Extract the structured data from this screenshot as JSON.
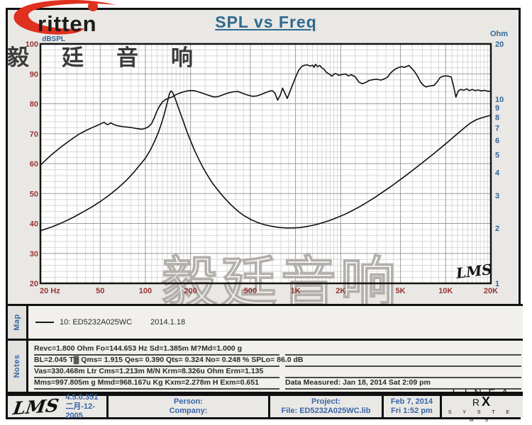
{
  "logo": {
    "brand_text": "ritten",
    "accent_color": "#e0301e"
  },
  "header_cn": "毅廷音响",
  "title": "SPL vs Freq",
  "chart_data": {
    "type": "line",
    "title": "SPL vs Freq",
    "x_axis": {
      "label": "Hz",
      "scale": "log",
      "min": 20,
      "max": 20000,
      "major_ticks": [
        20,
        50,
        100,
        200,
        500,
        1000,
        2000,
        5000,
        10000,
        20000
      ],
      "tick_labels": [
        "20 Hz",
        "50",
        "100",
        "200",
        "500",
        "1K",
        "2K",
        "5K",
        "10K",
        "20K"
      ]
    },
    "y_left": {
      "label": "dBSPL",
      "scale": "linear",
      "min": 20,
      "max": 100,
      "ticks": [
        100,
        90,
        80,
        70,
        60,
        50,
        40,
        30,
        20
      ]
    },
    "y_right": {
      "label": "Ohm",
      "scale": "log",
      "min": 1,
      "max": 20,
      "ticks": [
        20,
        10,
        9,
        8,
        7,
        6,
        5,
        4,
        3,
        2,
        1
      ]
    },
    "grid": true,
    "watermark": "毅廷音响",
    "signature": "LMS",
    "series": [
      {
        "name": "SPL (dB)",
        "axis": "left",
        "points": [
          [
            20,
            59.5
          ],
          [
            22,
            61.5
          ],
          [
            24,
            63.2
          ],
          [
            27,
            65.3
          ],
          [
            30,
            67
          ],
          [
            33,
            68.5
          ],
          [
            36,
            69.8
          ],
          [
            40,
            71
          ],
          [
            44,
            72
          ],
          [
            48,
            72.8
          ],
          [
            50,
            73.2
          ],
          [
            53,
            73.8
          ],
          [
            56,
            73
          ],
          [
            59,
            73.6
          ],
          [
            62,
            73
          ],
          [
            66,
            72.6
          ],
          [
            72,
            72.3
          ],
          [
            80,
            72.1
          ],
          [
            88,
            71.7
          ],
          [
            95,
            71.5
          ],
          [
            100,
            71.8
          ],
          [
            105,
            72.3
          ],
          [
            110,
            73.4
          ],
          [
            115,
            75.5
          ],
          [
            120,
            77.8
          ],
          [
            125,
            79.4
          ],
          [
            130,
            80.6
          ],
          [
            136,
            81.4
          ],
          [
            143,
            81.9
          ],
          [
            150,
            82.2
          ],
          [
            158,
            82.9
          ],
          [
            168,
            83.5
          ],
          [
            180,
            84
          ],
          [
            195,
            84.4
          ],
          [
            210,
            84.4
          ],
          [
            225,
            84
          ],
          [
            245,
            83.4
          ],
          [
            265,
            82.8
          ],
          [
            285,
            82.3
          ],
          [
            305,
            82.4
          ],
          [
            330,
            83
          ],
          [
            355,
            83.6
          ],
          [
            385,
            84
          ],
          [
            415,
            84.1
          ],
          [
            445,
            83.5
          ],
          [
            480,
            82.9
          ],
          [
            515,
            82.5
          ],
          [
            550,
            82.6
          ],
          [
            590,
            83.1
          ],
          [
            630,
            83.7
          ],
          [
            670,
            84.2
          ],
          [
            700,
            84.4
          ],
          [
            730,
            83.5
          ],
          [
            760,
            81.2
          ],
          [
            790,
            82.8
          ],
          [
            820,
            85.2
          ],
          [
            855,
            83.3
          ],
          [
            880,
            81.8
          ],
          [
            910,
            83.5
          ],
          [
            950,
            86
          ],
          [
            1000,
            88.8
          ],
          [
            1050,
            91.2
          ],
          [
            1100,
            92.5
          ],
          [
            1150,
            92.9
          ],
          [
            1200,
            93
          ],
          [
            1250,
            92.6
          ],
          [
            1300,
            92.9
          ],
          [
            1330,
            92.2
          ],
          [
            1360,
            93.2
          ],
          [
            1400,
            92.4
          ],
          [
            1450,
            92.8
          ],
          [
            1500,
            92
          ],
          [
            1550,
            91.5
          ],
          [
            1600,
            90.6
          ],
          [
            1700,
            89.7
          ],
          [
            1750,
            89.2
          ],
          [
            1800,
            89.9
          ],
          [
            1850,
            90.1
          ],
          [
            1950,
            89.5
          ],
          [
            2050,
            89.8
          ],
          [
            2150,
            90
          ],
          [
            2250,
            89.3
          ],
          [
            2350,
            89.7
          ],
          [
            2500,
            89
          ],
          [
            2650,
            87.2
          ],
          [
            2800,
            86.7
          ],
          [
            2950,
            87.2
          ],
          [
            3100,
            87.8
          ],
          [
            3300,
            88.1
          ],
          [
            3500,
            88.2
          ],
          [
            3700,
            87.9
          ],
          [
            3900,
            88.3
          ],
          [
            4100,
            88.9
          ],
          [
            4300,
            90.3
          ],
          [
            4500,
            91.2
          ],
          [
            4700,
            91.8
          ],
          [
            4900,
            92.2
          ],
          [
            5100,
            92.4
          ],
          [
            5300,
            92.2
          ],
          [
            5500,
            92.5
          ],
          [
            5700,
            92.8
          ],
          [
            5900,
            92
          ],
          [
            6200,
            90.8
          ],
          [
            6500,
            89.2
          ],
          [
            6800,
            87.3
          ],
          [
            7100,
            86.2
          ],
          [
            7400,
            85.6
          ],
          [
            7700,
            85.9
          ],
          [
            8000,
            86
          ],
          [
            8400,
            86.2
          ],
          [
            8800,
            87.4
          ],
          [
            9200,
            88.8
          ],
          [
            9600,
            89.2
          ],
          [
            10000,
            89.3
          ],
          [
            10500,
            89.2
          ],
          [
            10900,
            88.9
          ],
          [
            11300,
            85.8
          ],
          [
            11700,
            82.2
          ],
          [
            12100,
            84.2
          ],
          [
            12600,
            84.8
          ],
          [
            13200,
            84.5
          ],
          [
            13800,
            85
          ],
          [
            14400,
            84.4
          ],
          [
            15000,
            84.8
          ],
          [
            15700,
            84.4
          ],
          [
            16500,
            84.6
          ],
          [
            17300,
            84.3
          ],
          [
            18200,
            84.5
          ],
          [
            19000,
            84.2
          ],
          [
            20000,
            84.2
          ]
        ]
      },
      {
        "name": "Impedance (Ohm)",
        "axis": "right",
        "points": [
          [
            20,
            1.93
          ],
          [
            24,
            2.03
          ],
          [
            28,
            2.14
          ],
          [
            33,
            2.28
          ],
          [
            38,
            2.43
          ],
          [
            44,
            2.6
          ],
          [
            50,
            2.78
          ],
          [
            57,
            3
          ],
          [
            65,
            3.27
          ],
          [
            74,
            3.6
          ],
          [
            83,
            3.98
          ],
          [
            92,
            4.4
          ],
          [
            100,
            4.78
          ],
          [
            108,
            5.3
          ],
          [
            115,
            5.9
          ],
          [
            122,
            6.6
          ],
          [
            128,
            7.4
          ],
          [
            133,
            8.2
          ],
          [
            138,
            9.2
          ],
          [
            142,
            10.1
          ],
          [
            145,
            10.8
          ],
          [
            148,
            11.1
          ],
          [
            151,
            11
          ],
          [
            155,
            10.5
          ],
          [
            160,
            9.8
          ],
          [
            166,
            9
          ],
          [
            173,
            8.2
          ],
          [
            181,
            7.4
          ],
          [
            190,
            6.6
          ],
          [
            200,
            5.95
          ],
          [
            212,
            5.3
          ],
          [
            226,
            4.75
          ],
          [
            242,
            4.25
          ],
          [
            260,
            3.85
          ],
          [
            280,
            3.5
          ],
          [
            305,
            3.2
          ],
          [
            335,
            2.92
          ],
          [
            370,
            2.68
          ],
          [
            410,
            2.48
          ],
          [
            455,
            2.33
          ],
          [
            505,
            2.22
          ],
          [
            560,
            2.14
          ],
          [
            625,
            2.08
          ],
          [
            700,
            2.04
          ],
          [
            780,
            2.01
          ],
          [
            870,
            2.0
          ],
          [
            970,
            2.0
          ],
          [
            1080,
            2.01
          ],
          [
            1200,
            2.04
          ],
          [
            1350,
            2.08
          ],
          [
            1500,
            2.13
          ],
          [
            1700,
            2.2
          ],
          [
            1900,
            2.28
          ],
          [
            2150,
            2.38
          ],
          [
            2400,
            2.49
          ],
          [
            2700,
            2.62
          ],
          [
            3000,
            2.76
          ],
          [
            3400,
            2.94
          ],
          [
            3800,
            3.13
          ],
          [
            4300,
            3.35
          ],
          [
            4800,
            3.58
          ],
          [
            5400,
            3.84
          ],
          [
            6000,
            4.1
          ],
          [
            6700,
            4.4
          ],
          [
            7500,
            4.73
          ],
          [
            8400,
            5.1
          ],
          [
            9400,
            5.5
          ],
          [
            10500,
            5.93
          ],
          [
            11700,
            6.4
          ],
          [
            13000,
            6.88
          ],
          [
            14500,
            7.4
          ],
          [
            16000,
            7.75
          ],
          [
            17500,
            7.95
          ],
          [
            19000,
            8.1
          ],
          [
            20000,
            8.2
          ]
        ]
      }
    ]
  },
  "map": {
    "label": "Map",
    "legend_id": "10: ED5232A025WC",
    "legend_date": "2014.1.18"
  },
  "notes": {
    "label": "Notes",
    "lines": [
      "Revc=1.800 Ohm  Fo=144.653 Hz  Sd=1.385m M?Md=1.000 g",
      "BL=2.045 T▓  Qms= 1.915  Qes= 0.390  Qts= 0.324  No= 0.248 %  SPLo= 86.0 dB",
      "Vas=330.468m Ltr  Cms=1.213m M/N  Krm=8.326u Ohm  Erm=1.135",
      "Mms=997.805m g  Mmd=968.167u Kg  Kxm=2.278m H  Exm=0.651"
    ],
    "data_measured": "Data Measured: Jan 18, 2014  Sat  2:09 pm"
  },
  "footer": {
    "lms_logo": "LMS",
    "version": "4.5.0.351",
    "version_date": "二月-12-2005",
    "person_label": "Person:",
    "company_label": "Company:",
    "project_label": "Project:",
    "file_label": "File: ED5232A025WC.lib",
    "date": "Feb 7, 2014",
    "time": "Fri  1:52 pm",
    "brand_linear": "L I N E A R",
    "brand_x": "X",
    "brand_systems": "S Y S T E M S"
  },
  "colors": {
    "page_bg": "#e9e8e5",
    "plot_bg": "#ffffff",
    "title_blue": "#2f6a8f",
    "axis_maroon": "#993333",
    "axis_blue": "#336699",
    "footer_blue": "#3a64a8",
    "curve_black": "#0f0f0f",
    "logo_red": "#e0301e"
  }
}
